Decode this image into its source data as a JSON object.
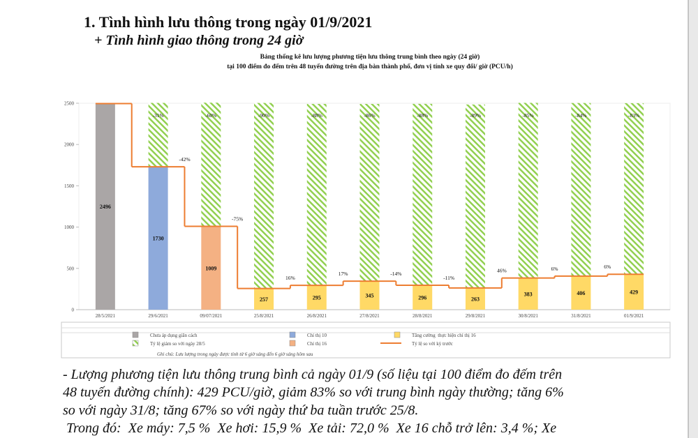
{
  "header": {
    "title": "1. Tình hình lưu thông trong ngày 01/9/2021",
    "subtitle": "+ Tình hình giao thông trong 24 giờ"
  },
  "chart_data": {
    "type": "bar",
    "title": "Bảng thống kê lưu lượng phương tiện lưu thông trung bình theo ngày (24 giờ)",
    "subtitle": "tại 100 điểm đo đếm trên 48 tuyến đường trên địa bàn thành phố, đơn vị tính xe quy đổi/ giờ (PCU/h)",
    "categories": [
      "28/5/2021",
      "29/6/2021",
      "09/07/2021",
      "25/8/2021",
      "26/8/2021",
      "27/8/2021",
      "28/8/2021",
      "29/8/2021",
      "30/8/2021",
      "31/8/2021",
      "01/9/2021"
    ],
    "series": [
      {
        "name": "Chưa áp dụng giãn cách",
        "color": "#aaa6a6",
        "values": [
          2496,
          null,
          null,
          null,
          null,
          null,
          null,
          null,
          null,
          null,
          null
        ]
      },
      {
        "name": "Chỉ thị 10",
        "color": "#8eaadb",
        "values": [
          null,
          1730,
          null,
          null,
          null,
          null,
          null,
          null,
          null,
          null,
          null
        ]
      },
      {
        "name": "Chỉ thị 16",
        "color": "#f4b183",
        "values": [
          null,
          null,
          1009,
          null,
          null,
          null,
          null,
          null,
          null,
          null,
          null
        ]
      },
      {
        "name": "Tăng cường  thực hiện chỉ thị 16",
        "color": "#ffd966",
        "values": [
          null,
          null,
          null,
          257,
          295,
          345,
          296,
          263,
          383,
          406,
          429
        ]
      },
      {
        "name": "Tỷ lệ giảm so với ngày 28/5",
        "color": "#92d050",
        "hatched": true,
        "values": [
          null,
          -31,
          -60,
          -90,
          -88,
          -86,
          -88,
          -89,
          -85,
          -84,
          -83
        ],
        "value_labels": [
          null,
          "-31%",
          "-60%",
          "-90%",
          "-88%",
          "-86%",
          "-88%",
          "-89%",
          "-85%",
          "-84%",
          "-83%"
        ]
      },
      {
        "name": "Tỷ lệ so với kỳ trước",
        "color": "#ed7d31",
        "type": "line",
        "values": [
          null,
          null,
          -42,
          -75,
          16,
          17,
          -14,
          -11,
          46,
          6,
          6
        ],
        "value_labels": [
          null,
          null,
          "-42%",
          "-75%",
          "16%",
          "17%",
          "-14%",
          "-11%",
          "46%",
          "6%",
          "6%"
        ]
      }
    ],
    "ylim": [
      0,
      2500
    ],
    "yticks": [
      0,
      500,
      1000,
      1500,
      2000,
      2500
    ],
    "note": "Ghi chú: Lưu lượng trong ngày được tính từ 6 giờ sáng đến 6 giờ sáng hôm sau"
  },
  "body": {
    "lines": [
      "- Lượng phương tiện lưu thông trung bình cả ngày 01/9 (số liệu tại 100 điểm đo đếm trên",
      "48 tuyến đường chính): 429 PCU/giờ, giảm 83% so với trung bình ngày thường; tăng 6%",
      "so với ngày 31/8; tăng 67% so với ngày thứ ba tuần trước 25/8.",
      " Trong đó:  Xe máy: 7,5 %  Xe hơi: 15,9 %  Xe tải: 72,0 %  Xe 16 chỗ trở lên: 3,4 %; Xe"
    ]
  }
}
